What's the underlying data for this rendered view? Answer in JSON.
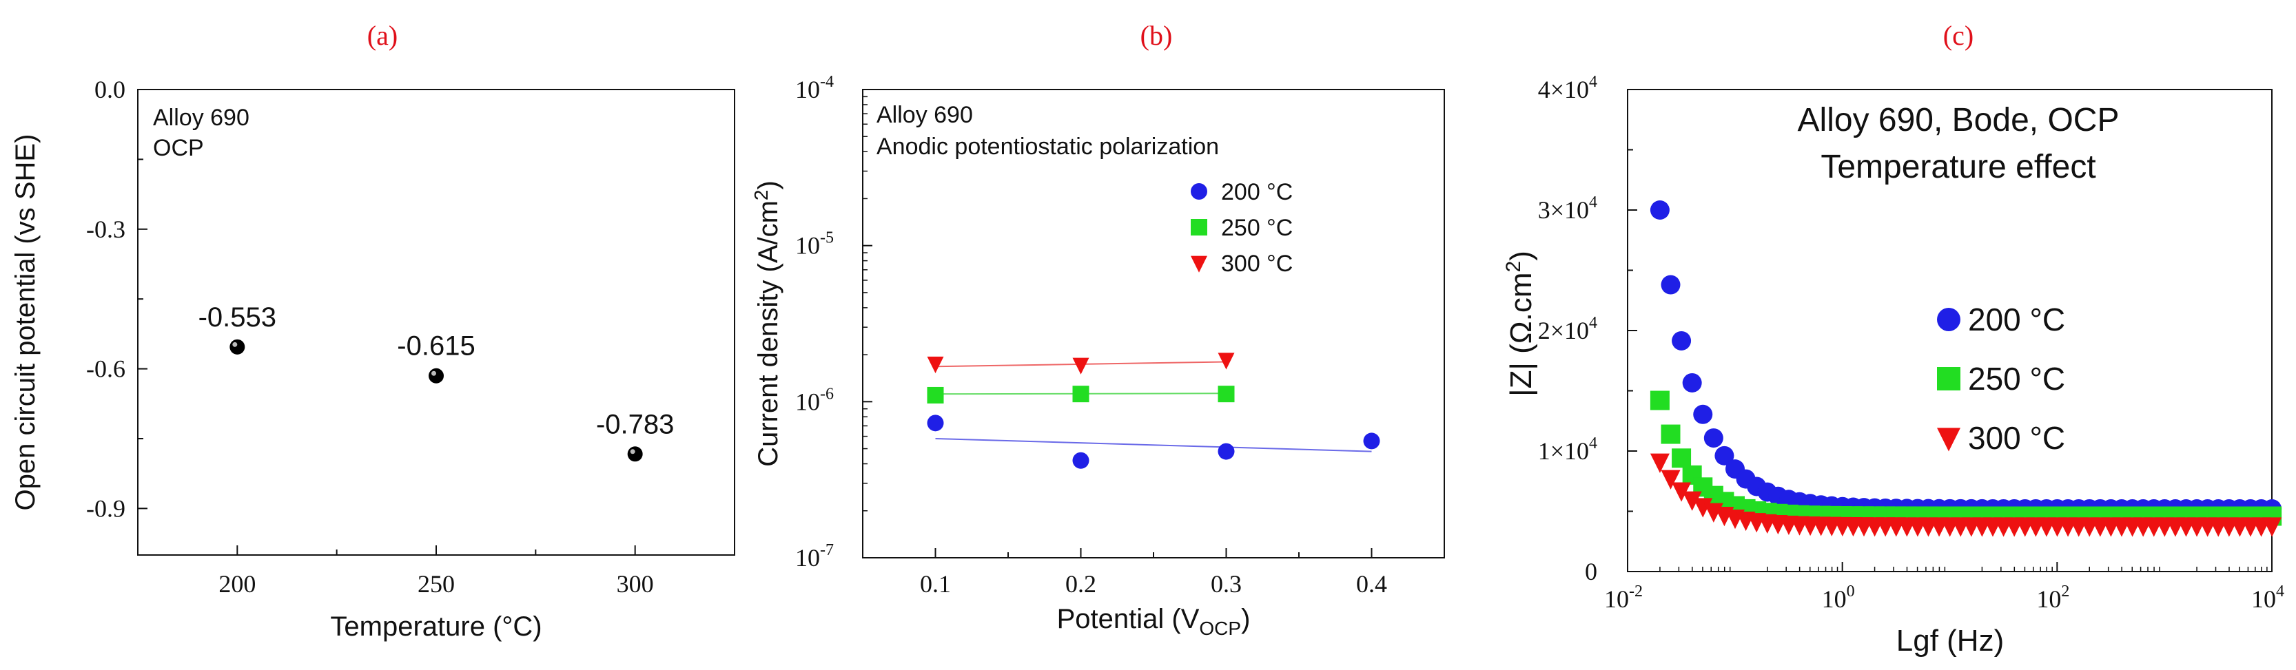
{
  "chart_data": [
    {
      "type": "scatter",
      "panel_label": "(a)",
      "xlabel": "Temperature (°C)",
      "ylabel": "Open circuit potential (vs SHE)",
      "xlim": [
        175,
        325
      ],
      "ylim": [
        -1.0,
        0.0
      ],
      "xticks": [
        200,
        250,
        300
      ],
      "xtick_labels": [
        "200",
        "250",
        "300"
      ],
      "yticks": [
        0.0,
        -0.3,
        -0.6,
        -0.9
      ],
      "ytick_labels": [
        "0.0",
        "-0.3",
        "-0.6",
        "-0.9"
      ],
      "annotation": [
        "Alloy 690",
        "OCP"
      ],
      "x": [
        200,
        250,
        300
      ],
      "y": [
        -0.553,
        -0.615,
        -0.783
      ],
      "point_labels": [
        "-0.553",
        "-0.615",
        "-0.783"
      ]
    },
    {
      "type": "scatter",
      "panel_label": "(b)",
      "xlabel": "Potential (V",
      "xlabel_sub": "OCP",
      "xlabel_end": ")",
      "ylabel": "Current density (A/cm",
      "ylabel_sup": "2",
      "ylabel_end": ")",
      "yscale": "log",
      "xlim": [
        0.05,
        0.45
      ],
      "ylim": [
        1e-07,
        0.0001
      ],
      "xticks": [
        0.1,
        0.2,
        0.3,
        0.4
      ],
      "xtick_labels": [
        "0.1",
        "0.2",
        "0.3",
        "0.4"
      ],
      "yticks": [
        1e-07,
        1e-06,
        1e-05,
        0.0001
      ],
      "ytick_labels": [
        {
          "base": "10",
          "exp": "-7"
        },
        {
          "base": "10",
          "exp": "-6"
        },
        {
          "base": "10",
          "exp": "-5"
        },
        {
          "base": "10",
          "exp": "-4"
        }
      ],
      "annotation": [
        "Alloy 690",
        "Anodic potentiostatic polarization"
      ],
      "legend_position": "upper-right",
      "series": [
        {
          "name": "200 °C",
          "marker": "circle",
          "color": "#1f1fe6",
          "line_color": "#6a6ae8",
          "x": [
            0.1,
            0.2,
            0.3,
            0.4
          ],
          "y": [
            7.3e-07,
            4.2e-07,
            4.8e-07,
            5.6e-07
          ],
          "fit_x": [
            0.1,
            0.4
          ],
          "fit_y": [
            5.8e-07,
            4.8e-07
          ]
        },
        {
          "name": "250 °C",
          "marker": "square",
          "color": "#22dd22",
          "line_color": "#66dd66",
          "x": [
            0.1,
            0.2,
            0.3
          ],
          "y": [
            1.1e-06,
            1.12e-06,
            1.12e-06
          ],
          "fit_x": [
            0.1,
            0.3
          ],
          "fit_y": [
            1.12e-06,
            1.13e-06
          ]
        },
        {
          "name": "300 °C",
          "marker": "triangle-down",
          "color": "#ee1111",
          "line_color": "#ee6666",
          "x": [
            0.1,
            0.2,
            0.3
          ],
          "y": [
            1.75e-06,
            1.72e-06,
            1.85e-06
          ],
          "fit_x": [
            0.1,
            0.3
          ],
          "fit_y": [
            1.68e-06,
            1.8e-06
          ]
        }
      ]
    },
    {
      "type": "scatter",
      "panel_label": "(c)",
      "title_lines": [
        "Alloy 690, Bode, OCP",
        "Temperature effect"
      ],
      "xlabel": "Lgf (Hz)",
      "ylabel": "|Z| (Ω.cm",
      "ylabel_sup": "2",
      "ylabel_end": ")",
      "xscale": "log",
      "xlim": [
        0.01,
        10000
      ],
      "ylim": [
        0,
        40000
      ],
      "xticks": [
        0.01,
        1,
        100,
        10000
      ],
      "xtick_labels": [
        {
          "base": "10",
          "exp": "-2"
        },
        {
          "base": "10",
          "exp": "0"
        },
        {
          "base": "10",
          "exp": "2"
        },
        {
          "base": "10",
          "exp": "4"
        }
      ],
      "yticks": [
        0,
        10000,
        20000,
        30000,
        40000
      ],
      "ytick_labels": [
        {
          "base": "0",
          "exp": ""
        },
        {
          "base": "1×10",
          "exp": "4"
        },
        {
          "base": "2×10",
          "exp": "4"
        },
        {
          "base": "3×10",
          "exp": "4"
        },
        {
          "base": "4×10",
          "exp": "4"
        }
      ],
      "legend_position": "center-right",
      "series": [
        {
          "name": "200 °C",
          "marker": "circle",
          "color": "#1f1fe6",
          "f_start": 0.02,
          "f_end": 10000,
          "points_per_decade": 10,
          "z_inf": 5200,
          "z_amp": 24800,
          "f_c": 0.02,
          "exponent": 1.25
        },
        {
          "name": "250 °C",
          "marker": "square",
          "color": "#22dd22",
          "f_start": 0.02,
          "f_end": 10000,
          "points_per_decade": 10,
          "z_inf": 4600,
          "z_amp": 9600,
          "f_c": 0.02,
          "exponent": 1.5
        },
        {
          "name": "300 °C",
          "marker": "triangle-down",
          "color": "#ee1111",
          "f_start": 0.02,
          "f_end": 10000,
          "points_per_decade": 10,
          "z_inf": 3800,
          "z_amp": 5300,
          "f_c": 0.02,
          "exponent": 1.3
        }
      ]
    }
  ]
}
